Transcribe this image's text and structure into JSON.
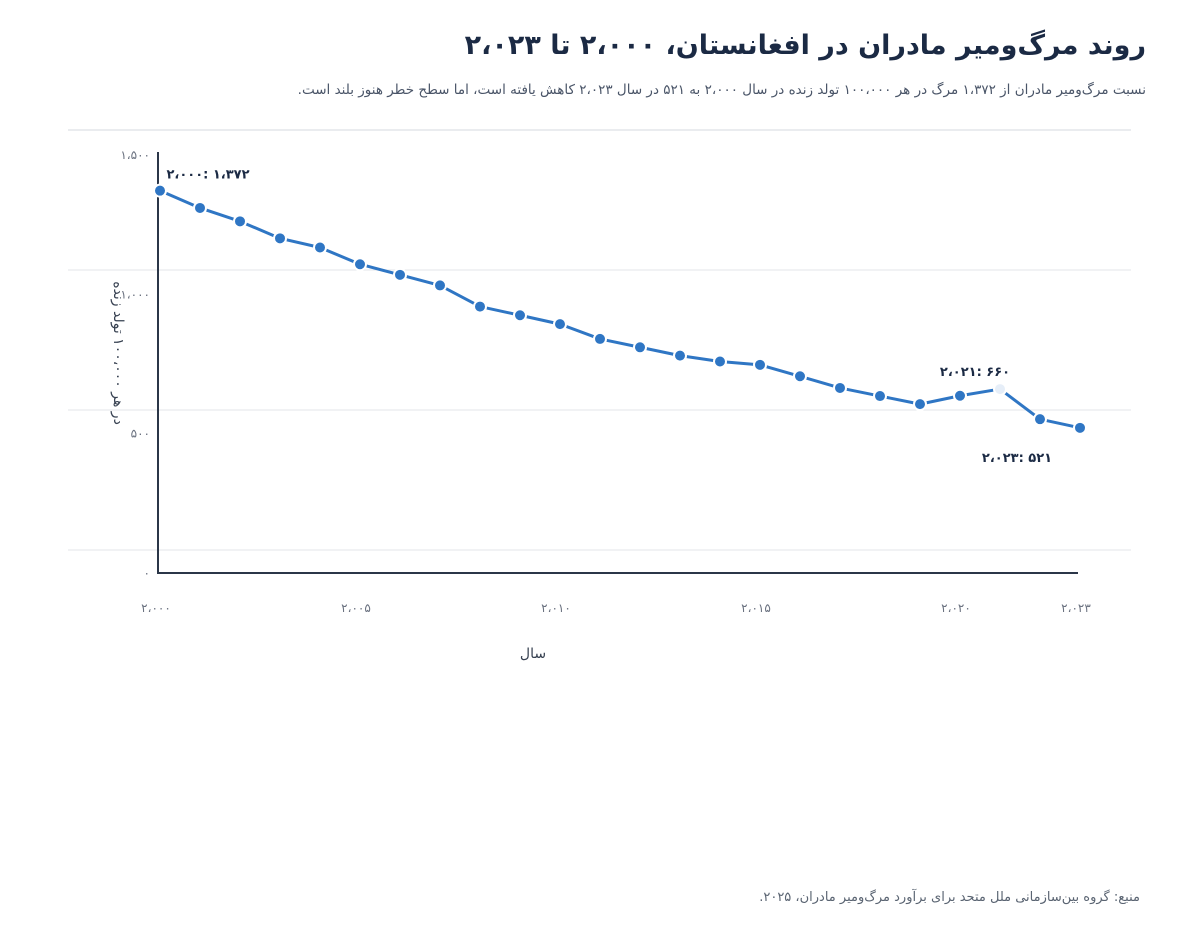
{
  "header": {
    "title": "روند مرگ‌ومیر مادران در افغانستان، ۲،۰۰۰ تا ۲،۰۲۳",
    "subtitle": "نسبت مرگ‌ومیر مادران از ۱،۳۷۲ مرگ در هر ۱۰۰،۰۰۰ تولد زنده در سال ۲،۰۰۰ به ۵۲۱ در سال ۲،۰۲۳ کاهش یافته است، اما سطح خطر هنوز بلند است."
  },
  "footer": {
    "source": "منبع: گروه بین‌سازمانی ملل متحد برای برآورد مرگ‌ومیر مادران، ۲۰۲۵."
  },
  "colors": {
    "line": "#2f76c4",
    "point": "#2f76c4",
    "highlight_point": "#e6eef8",
    "axis": "#2b3648",
    "grid": "#e3e6ea"
  },
  "chart_data": {
    "type": "line",
    "xlabel": "سال",
    "ylabel": "در هر ۱۰۰،۰۰۰ تولد زنده",
    "xlim": [
      2000,
      2023
    ],
    "ylim": [
      0,
      1500
    ],
    "grid": true,
    "x_ticks": [
      {
        "value": 2000,
        "label": "۲،۰۰۰"
      },
      {
        "value": 2005,
        "label": "۲،۰۰۵"
      },
      {
        "value": 2010,
        "label": "۲،۰۱۰"
      },
      {
        "value": 2015,
        "label": "۲،۰۱۵"
      },
      {
        "value": 2020,
        "label": "۲،۰۲۰"
      },
      {
        "value": 2023,
        "label": "۲،۰۲۳"
      }
    ],
    "y_ticks": [
      {
        "value": 0,
        "label": "۰"
      },
      {
        "value": 500,
        "label": "۵۰۰"
      },
      {
        "value": 1000,
        "label": "۱،۰۰۰"
      },
      {
        "value": 1500,
        "label": "۱،۵۰۰"
      }
    ],
    "series": [
      {
        "x": [
          2000,
          2001,
          2002,
          2003,
          2004,
          2005,
          2006,
          2007,
          2008,
          2009,
          2010,
          2011,
          2012,
          2013,
          2014,
          2015,
          2016,
          2017,
          2018,
          2019,
          2020,
          2021,
          2022,
          2023
        ],
        "values": [
          1372,
          1310,
          1262,
          1201,
          1168,
          1108,
          1070,
          1032,
          956,
          925,
          893,
          840,
          810,
          780,
          759,
          747,
          706,
          664,
          635,
          606,
          636,
          660,
          552,
          521
        ]
      }
    ],
    "highlight_x": 2021,
    "annotations": [
      {
        "x": 2000,
        "y": 1372,
        "text": "۲،۰۰۰: ۱،۳۷۲"
      },
      {
        "x": 2021,
        "y": 660,
        "text": "۲،۰۲۱: ۶۶۰"
      },
      {
        "x": 2023,
        "y": 521,
        "text": "۲،۰۲۳: ۵۲۱"
      }
    ]
  }
}
